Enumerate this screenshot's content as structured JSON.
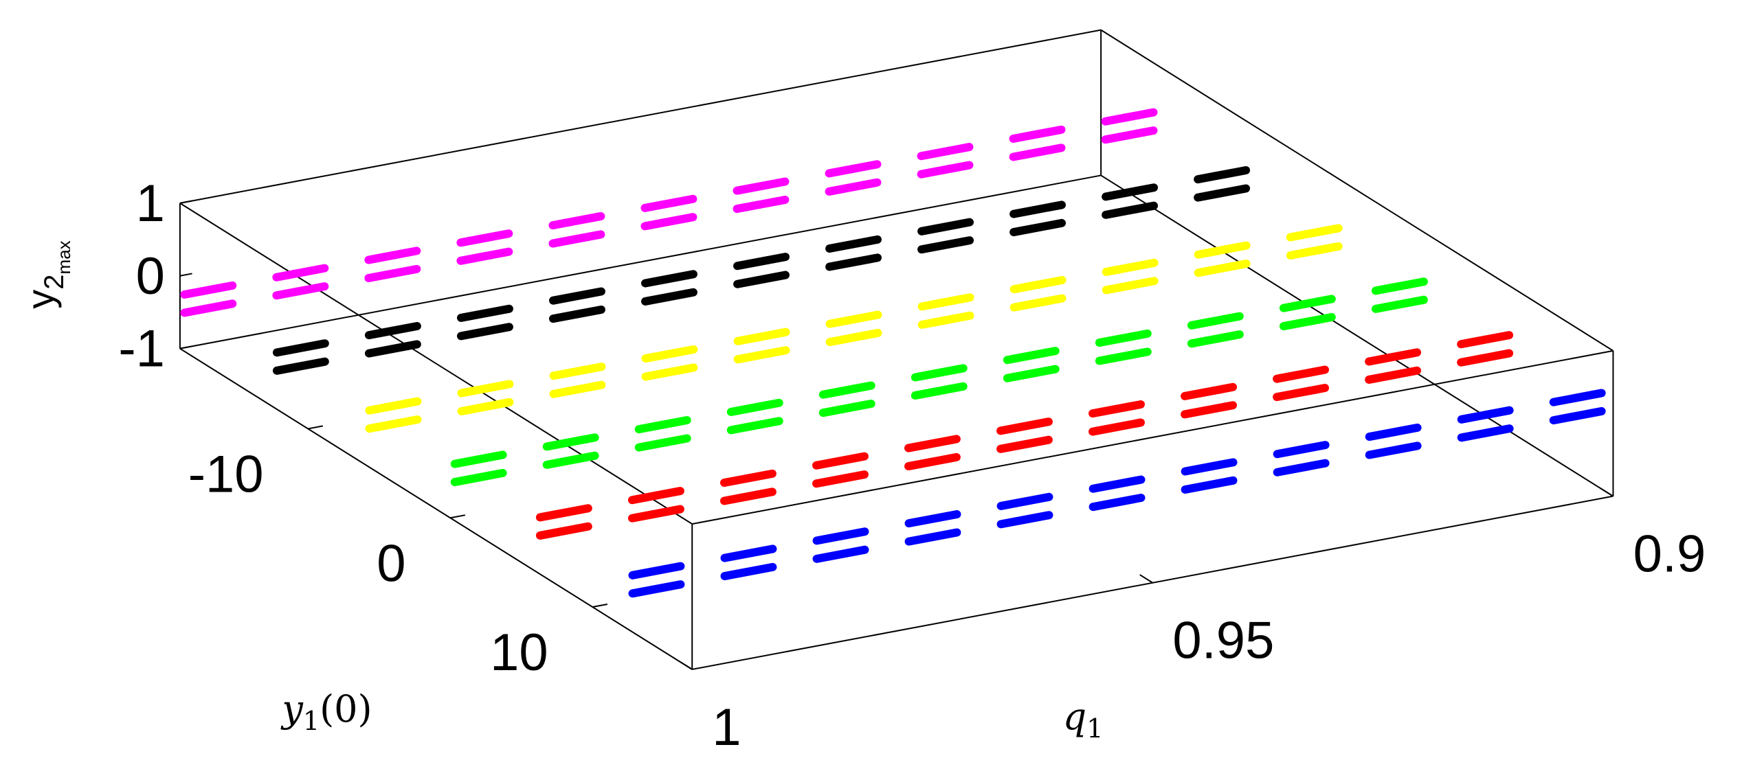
{
  "chart_data": {
    "type": "scatter3d",
    "xlabel": [
      "q",
      "1"
    ],
    "ylabel": [
      "y",
      "1",
      "(0)"
    ],
    "zlabel": [
      "y",
      "2",
      "max"
    ],
    "xlim": [
      1,
      0.9
    ],
    "xticks": [
      1,
      0.95,
      0.9
    ],
    "ylim": [
      -19,
      17
    ],
    "yticks": [
      -10,
      0,
      10
    ],
    "zlim": [
      -1,
      1
    ],
    "zticks": [
      -1,
      0,
      1
    ],
    "series": [
      {
        "color": "#ff00ff",
        "x": [
          1,
          0.99,
          0.98,
          0.97,
          0.96,
          0.95,
          0.94,
          0.93,
          0.92,
          0.91,
          0.9,
          1,
          0.99,
          0.98,
          0.97,
          0.96,
          0.95,
          0.94,
          0.93,
          0.92,
          0.91,
          0.9
        ],
        "y": [
          -17,
          -17,
          -17,
          -17,
          -17,
          -17,
          -17,
          -17,
          -17,
          -17,
          -17,
          -17,
          -17,
          -17,
          -17,
          -17,
          -17,
          -17,
          -17,
          -17,
          -17,
          -17
        ],
        "values": [
          0.05,
          0.05,
          0.05,
          0.05,
          0.05,
          0.05,
          0.05,
          0.05,
          0.05,
          0.05,
          0.05,
          -0.2,
          -0.2,
          -0.2,
          -0.2,
          -0.2,
          -0.2,
          -0.2,
          -0.2,
          -0.2,
          -0.2,
          -0.2
        ]
      },
      {
        "color": "#000000",
        "x": [
          1,
          0.99,
          0.98,
          0.97,
          0.96,
          0.95,
          0.94,
          0.93,
          0.92,
          0.91,
          0.9,
          1,
          0.99,
          0.98,
          0.97,
          0.96,
          0.95,
          0.94,
          0.93,
          0.92,
          0.91,
          0.9
        ],
        "y": [
          -10.5,
          -10.5,
          -10.5,
          -10.5,
          -10.5,
          -10.5,
          -10.5,
          -10.5,
          -10.5,
          -10.5,
          -10.5,
          -10.5,
          -10.5,
          -10.5,
          -10.5,
          -10.5,
          -10.5,
          -10.5,
          -10.5,
          -10.5,
          -10.5,
          -10.5
        ],
        "values": [
          0.05,
          0.05,
          0.05,
          0.05,
          0.05,
          0.05,
          0.05,
          0.05,
          0.05,
          0.05,
          0.05,
          -0.2,
          -0.2,
          -0.2,
          -0.2,
          -0.2,
          -0.2,
          -0.2,
          -0.2,
          -0.2,
          -0.2,
          -0.2
        ]
      },
      {
        "color": "#ffff00",
        "x": [
          1,
          0.99,
          0.98,
          0.97,
          0.96,
          0.95,
          0.94,
          0.93,
          0.92,
          0.91,
          0.9,
          1,
          0.99,
          0.98,
          0.97,
          0.96,
          0.95,
          0.94,
          0.93,
          0.92,
          0.91,
          0.9
        ],
        "y": [
          -4,
          -4,
          -4,
          -4,
          -4,
          -4,
          -4,
          -4,
          -4,
          -4,
          -4,
          -4,
          -4,
          -4,
          -4,
          -4,
          -4,
          -4,
          -4,
          -4,
          -4,
          -4
        ],
        "values": [
          0.05,
          0.05,
          0.05,
          0.05,
          0.05,
          0.05,
          0.05,
          0.05,
          0.05,
          0.05,
          0.05,
          -0.2,
          -0.2,
          -0.2,
          -0.2,
          -0.2,
          -0.2,
          -0.2,
          -0.2,
          -0.2,
          -0.2,
          -0.2
        ]
      },
      {
        "color": "#00ff00",
        "x": [
          1,
          0.99,
          0.98,
          0.97,
          0.96,
          0.95,
          0.94,
          0.93,
          0.92,
          0.91,
          0.9,
          1,
          0.99,
          0.98,
          0.97,
          0.96,
          0.95,
          0.94,
          0.93,
          0.92,
          0.91,
          0.9
        ],
        "y": [
          2,
          2,
          2,
          2,
          2,
          2,
          2,
          2,
          2,
          2,
          2,
          2,
          2,
          2,
          2,
          2,
          2,
          2,
          2,
          2,
          2,
          2
        ],
        "values": [
          0.05,
          0.05,
          0.05,
          0.05,
          0.05,
          0.05,
          0.05,
          0.05,
          0.05,
          0.05,
          0.05,
          -0.2,
          -0.2,
          -0.2,
          -0.2,
          -0.2,
          -0.2,
          -0.2,
          -0.2,
          -0.2,
          -0.2,
          -0.2
        ]
      },
      {
        "color": "#ff0000",
        "x": [
          1,
          0.99,
          0.98,
          0.97,
          0.96,
          0.95,
          0.94,
          0.93,
          0.92,
          0.91,
          0.9,
          1,
          0.99,
          0.98,
          0.97,
          0.96,
          0.95,
          0.94,
          0.93,
          0.92,
          0.91,
          0.9
        ],
        "y": [
          8,
          8,
          8,
          8,
          8,
          8,
          8,
          8,
          8,
          8,
          8,
          8,
          8,
          8,
          8,
          8,
          8,
          8,
          8,
          8,
          8,
          8
        ],
        "values": [
          0.05,
          0.05,
          0.05,
          0.05,
          0.05,
          0.05,
          0.05,
          0.05,
          0.05,
          0.05,
          0.05,
          -0.2,
          -0.2,
          -0.2,
          -0.2,
          -0.2,
          -0.2,
          -0.2,
          -0.2,
          -0.2,
          -0.2,
          -0.2
        ]
      },
      {
        "color": "#0000ff",
        "x": [
          1,
          0.99,
          0.98,
          0.97,
          0.96,
          0.95,
          0.94,
          0.93,
          0.92,
          0.91,
          0.9,
          1,
          0.99,
          0.98,
          0.97,
          0.96,
          0.95,
          0.94,
          0.93,
          0.92,
          0.91,
          0.9
        ],
        "y": [
          14.5,
          14.5,
          14.5,
          14.5,
          14.5,
          14.5,
          14.5,
          14.5,
          14.5,
          14.5,
          14.5,
          14.5,
          14.5,
          14.5,
          14.5,
          14.5,
          14.5,
          14.5,
          14.5,
          14.5,
          14.5,
          14.5
        ],
        "values": [
          0.05,
          0.05,
          0.05,
          0.05,
          0.05,
          0.05,
          0.05,
          0.05,
          0.05,
          0.05,
          0.05,
          -0.2,
          -0.2,
          -0.2,
          -0.2,
          -0.2,
          -0.2,
          -0.2,
          -0.2,
          -0.2,
          -0.2,
          -0.2
        ]
      }
    ]
  }
}
